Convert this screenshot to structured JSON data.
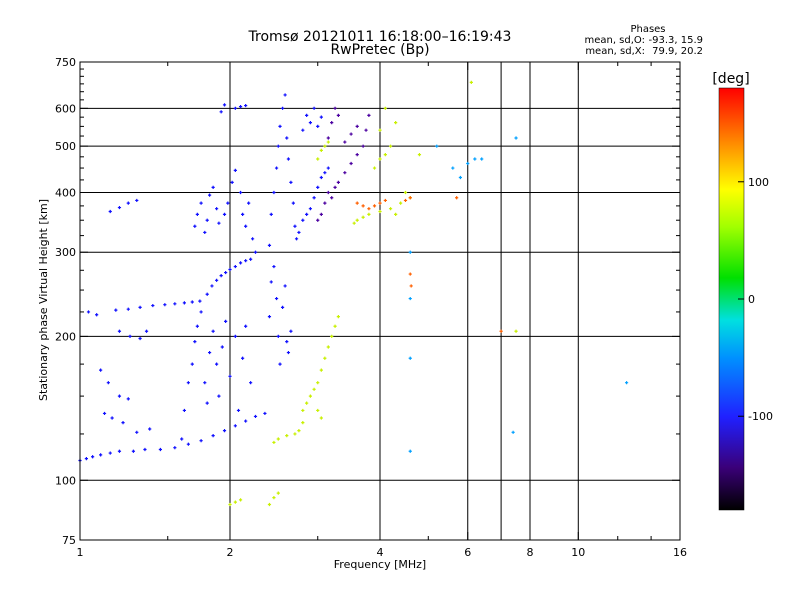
{
  "chart_data": {
    "type": "scatter",
    "title": "Tromsø 20121011 16:18:00–16:19:43",
    "subtitle": "RwPretec (Bp)",
    "xlabel": "Frequency [MHz]",
    "ylabel": "Stationary phase Virtual Height [km]",
    "x_scale": "log2",
    "y_scale": "log",
    "xlim": [
      1,
      16
    ],
    "ylim": [
      75,
      750
    ],
    "x_ticks": [
      1,
      2,
      4,
      6,
      8,
      10,
      16
    ],
    "x_tick_labels": [
      "1",
      "2",
      "4",
      "6",
      "8",
      "10",
      "16"
    ],
    "x_grid": [
      2,
      4,
      6,
      7,
      8,
      10
    ],
    "x_minor_ticks": [
      1.5,
      3,
      5,
      12,
      14
    ],
    "y_ticks": [
      75,
      100,
      200,
      300,
      400,
      500,
      600,
      750
    ],
    "y_tick_labels": [
      "75",
      "100",
      "200",
      "300",
      "400",
      "500",
      "600",
      "750"
    ],
    "y_grid": [
      100,
      200,
      300,
      400,
      500,
      600
    ],
    "y_minor_ticks": [
      125,
      150,
      175,
      225,
      250,
      275,
      325,
      350,
      375,
      425,
      450,
      475,
      525,
      550,
      575,
      625,
      650,
      675,
      700,
      725
    ],
    "grid": true,
    "stats": {
      "heading": "Phases",
      "o_label": "mean, sd,O:",
      "o_values": "-93.3, 15.9",
      "x_label": "mean, sd,X:",
      "x_values": "79.9, 20.2"
    },
    "colorbar": {
      "label": "[deg]",
      "range": [
        -180,
        180
      ],
      "ticks": [
        100,
        0,
        -100
      ],
      "tick_labels": [
        "100",
        "0",
        "-100"
      ],
      "colormap": "rainbow"
    },
    "series": [
      {
        "points": [
          [
            1.0,
            110
          ],
          [
            1.03,
            111
          ],
          [
            1.06,
            112
          ],
          [
            1.1,
            113
          ],
          [
            1.15,
            114
          ],
          [
            1.2,
            115
          ],
          [
            1.28,
            115
          ],
          [
            1.35,
            116
          ],
          [
            1.45,
            116
          ],
          [
            1.55,
            117
          ],
          [
            1.65,
            119
          ],
          [
            1.75,
            121
          ],
          [
            1.85,
            124
          ],
          [
            1.95,
            127
          ],
          [
            2.05,
            130
          ],
          [
            2.15,
            133
          ],
          [
            2.25,
            136
          ],
          [
            2.35,
            138
          ],
          [
            1.04,
            225
          ],
          [
            1.08,
            222
          ],
          [
            1.18,
            227
          ],
          [
            1.25,
            228
          ],
          [
            1.32,
            230
          ],
          [
            1.4,
            232
          ],
          [
            1.48,
            233
          ],
          [
            1.55,
            234
          ],
          [
            1.62,
            235
          ],
          [
            1.68,
            236
          ],
          [
            1.74,
            237
          ],
          [
            1.8,
            245
          ],
          [
            1.84,
            255
          ],
          [
            1.88,
            262
          ],
          [
            1.92,
            268
          ],
          [
            1.96,
            272
          ],
          [
            2.0,
            276
          ],
          [
            2.05,
            280
          ],
          [
            2.1,
            285
          ],
          [
            2.15,
            288
          ],
          [
            2.2,
            290
          ],
          [
            1.2,
            205
          ],
          [
            1.26,
            200
          ],
          [
            1.32,
            198
          ],
          [
            1.36,
            205
          ],
          [
            1.1,
            170
          ],
          [
            1.14,
            160
          ],
          [
            1.2,
            150
          ],
          [
            1.25,
            148
          ],
          [
            1.12,
            138
          ],
          [
            1.16,
            135
          ],
          [
            1.22,
            132
          ],
          [
            1.3,
            126
          ],
          [
            1.38,
            128
          ],
          [
            1.15,
            365
          ],
          [
            1.2,
            372
          ],
          [
            1.25,
            380
          ],
          [
            1.3,
            385
          ],
          [
            1.6,
            122
          ],
          [
            1.62,
            140
          ],
          [
            1.65,
            160
          ],
          [
            1.68,
            175
          ],
          [
            1.7,
            195
          ],
          [
            1.72,
            210
          ],
          [
            1.75,
            225
          ],
          [
            1.78,
            160
          ],
          [
            1.8,
            145
          ],
          [
            1.82,
            185
          ],
          [
            1.85,
            205
          ],
          [
            1.88,
            175
          ],
          [
            1.9,
            150
          ],
          [
            1.93,
            190
          ],
          [
            1.96,
            215
          ],
          [
            2.0,
            165
          ],
          [
            2.05,
            200
          ],
          [
            2.08,
            140
          ],
          [
            2.12,
            180
          ],
          [
            2.15,
            210
          ],
          [
            2.2,
            160
          ],
          [
            1.7,
            340
          ],
          [
            1.72,
            360
          ],
          [
            1.75,
            380
          ],
          [
            1.78,
            330
          ],
          [
            1.8,
            350
          ],
          [
            1.82,
            395
          ],
          [
            1.85,
            410
          ],
          [
            1.88,
            370
          ],
          [
            1.9,
            345
          ],
          [
            1.95,
            360
          ],
          [
            1.98,
            380
          ],
          [
            2.02,
            420
          ],
          [
            2.05,
            445
          ],
          [
            2.1,
            400
          ],
          [
            2.12,
            360
          ],
          [
            2.15,
            340
          ],
          [
            2.18,
            380
          ],
          [
            2.22,
            320
          ],
          [
            2.25,
            300
          ],
          [
            1.92,
            590
          ],
          [
            1.95,
            610
          ],
          [
            2.05,
            600
          ],
          [
            2.1,
            605
          ],
          [
            2.15,
            608
          ],
          [
            2.4,
            220
          ],
          [
            2.42,
            260
          ],
          [
            2.45,
            280
          ],
          [
            2.48,
            240
          ],
          [
            2.5,
            200
          ],
          [
            2.52,
            175
          ],
          [
            2.55,
            230
          ],
          [
            2.58,
            255
          ],
          [
            2.6,
            195
          ],
          [
            2.62,
            185
          ],
          [
            2.65,
            205
          ],
          [
            2.4,
            310
          ],
          [
            2.42,
            360
          ],
          [
            2.45,
            400
          ],
          [
            2.48,
            450
          ],
          [
            2.5,
            500
          ],
          [
            2.52,
            550
          ],
          [
            2.55,
            600
          ],
          [
            2.58,
            640
          ],
          [
            2.6,
            520
          ],
          [
            2.62,
            470
          ],
          [
            2.65,
            420
          ],
          [
            2.68,
            380
          ],
          [
            2.7,
            340
          ],
          [
            2.72,
            320
          ],
          [
            2.75,
            330
          ],
          [
            2.8,
            350
          ],
          [
            2.85,
            360
          ],
          [
            2.9,
            370
          ],
          [
            2.95,
            390
          ],
          [
            3.0,
            410
          ],
          [
            3.05,
            430
          ],
          [
            3.1,
            440
          ],
          [
            3.15,
            450
          ],
          [
            2.8,
            540
          ],
          [
            2.85,
            580
          ],
          [
            2.9,
            560
          ],
          [
            2.95,
            600
          ],
          [
            3.0,
            550
          ],
          [
            3.05,
            575
          ]
        ],
        "color": "#1010ff"
      },
      {
        "points": [
          [
            3.3,
            420
          ],
          [
            3.4,
            440
          ],
          [
            3.5,
            460
          ],
          [
            3.6,
            480
          ],
          [
            3.7,
            500
          ],
          [
            3.75,
            540
          ],
          [
            3.8,
            580
          ],
          [
            3.4,
            510
          ],
          [
            3.5,
            530
          ],
          [
            3.6,
            550
          ],
          [
            3.0,
            350
          ],
          [
            3.05,
            360
          ],
          [
            3.1,
            380
          ],
          [
            3.15,
            400
          ],
          [
            3.2,
            390
          ],
          [
            3.25,
            410
          ],
          [
            3.15,
            520
          ],
          [
            3.2,
            560
          ],
          [
            3.25,
            600
          ],
          [
            3.3,
            580
          ]
        ],
        "color": "#4b00a0"
      },
      {
        "points": [
          [
            2.45,
            120
          ],
          [
            2.5,
            122
          ],
          [
            2.6,
            124
          ],
          [
            2.7,
            125
          ],
          [
            2.75,
            127
          ],
          [
            2.8,
            132
          ],
          [
            2.8,
            140
          ],
          [
            2.85,
            145
          ],
          [
            2.9,
            150
          ],
          [
            2.95,
            155
          ],
          [
            3.0,
            160
          ],
          [
            3.05,
            170
          ],
          [
            3.1,
            180
          ],
          [
            3.15,
            190
          ],
          [
            3.2,
            200
          ],
          [
            3.25,
            210
          ],
          [
            3.3,
            220
          ],
          [
            3.0,
            140
          ],
          [
            3.05,
            135
          ],
          [
            3.0,
            470
          ],
          [
            3.05,
            490
          ],
          [
            3.1,
            500
          ],
          [
            3.15,
            510
          ],
          [
            3.9,
            450
          ],
          [
            4.0,
            470
          ],
          [
            4.1,
            480
          ],
          [
            4.2,
            500
          ],
          [
            4.3,
            560
          ],
          [
            4.0,
            540
          ],
          [
            4.1,
            600
          ],
          [
            3.55,
            345
          ],
          [
            3.6,
            350
          ],
          [
            3.7,
            355
          ],
          [
            3.8,
            360
          ],
          [
            4.0,
            365
          ],
          [
            4.2,
            370
          ],
          [
            4.4,
            380
          ],
          [
            4.6,
            390
          ],
          [
            4.3,
            360
          ],
          [
            4.5,
            400
          ],
          [
            2.0,
            89
          ],
          [
            2.05,
            90
          ],
          [
            2.1,
            91
          ],
          [
            2.4,
            89
          ],
          [
            2.45,
            92
          ],
          [
            2.5,
            94
          ],
          [
            6.1,
            680
          ],
          [
            4.8,
            480
          ],
          [
            7.5,
            205
          ]
        ],
        "color": "#c8f000"
      },
      {
        "points": [
          [
            3.6,
            380
          ],
          [
            3.7,
            375
          ],
          [
            3.8,
            370
          ],
          [
            3.9,
            375
          ],
          [
            4.0,
            380
          ],
          [
            4.1,
            385
          ],
          [
            4.5,
            385
          ],
          [
            4.6,
            390
          ],
          [
            4.6,
            270
          ],
          [
            4.62,
            255
          ],
          [
            5.7,
            390
          ],
          [
            7.0,
            205
          ]
        ],
        "color": "#ff6000"
      },
      {
        "points": [
          [
            5.8,
            430
          ],
          [
            6.0,
            460
          ],
          [
            6.2,
            470
          ],
          [
            6.4,
            470
          ],
          [
            5.2,
            500
          ],
          [
            5.6,
            450
          ],
          [
            4.6,
            300
          ],
          [
            4.6,
            240
          ],
          [
            4.6,
            180
          ],
          [
            4.6,
            115
          ],
          [
            7.4,
            126
          ],
          [
            7.5,
            520
          ],
          [
            12.5,
            160
          ]
        ],
        "color": "#00a0ff"
      }
    ]
  }
}
